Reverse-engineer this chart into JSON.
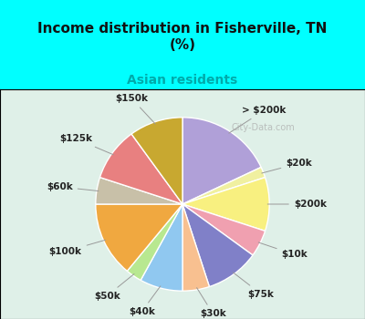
{
  "title": "Income distribution in Fisherville, TN\n(%)",
  "subtitle": "Asian residents",
  "title_color": "#111111",
  "subtitle_color": "#00aaaa",
  "background_top": "#00ffff",
  "background_chart": "#e8f5e9",
  "labels": [
    "> $200k",
    "$20k",
    "$200k",
    "$10k",
    "$75k",
    "$30k",
    "$40k",
    "$50k",
    "$100k",
    "$60k",
    "$125k",
    "$150k"
  ],
  "values": [
    18,
    2,
    10,
    5,
    10,
    5,
    8,
    3,
    14,
    5,
    10,
    10
  ],
  "colors": [
    "#b0a0d8",
    "#f0f0a0",
    "#f8f080",
    "#f0a0b0",
    "#8080c8",
    "#f8c090",
    "#90c8f0",
    "#b8e890",
    "#f0a840",
    "#c8c0a8",
    "#e88080",
    "#c8a830"
  ],
  "wedge_edge_color": "white",
  "label_fontsize": 7.5,
  "label_color": "#222222"
}
